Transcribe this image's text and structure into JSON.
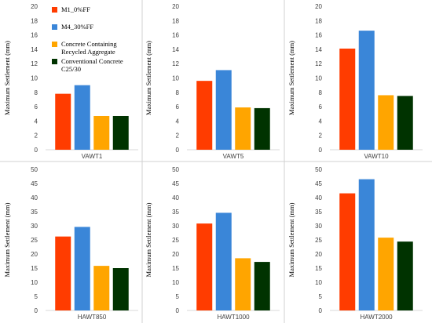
{
  "series_colors": [
    "#ff3c00",
    "#3a86d8",
    "#ffa500",
    "#003300"
  ],
  "legend": [
    {
      "label": "M1_0%FF"
    },
    {
      "label": "M4_30%FF"
    },
    {
      "label": "Concrete Containing",
      "label2": "Recycled Aggregate"
    },
    {
      "label": "Conventional Concrete",
      "label2": "C25/30"
    }
  ],
  "chart_data": [
    {
      "type": "bar",
      "categories": [
        "VAWT1"
      ],
      "ylabel": "Maximum Settlement (mm)",
      "ylim": [
        0,
        20
      ],
      "yticks": [
        0,
        2,
        4,
        6,
        8,
        10,
        12,
        14,
        16,
        18,
        20
      ],
      "series": [
        {
          "name": "M1_0%FF",
          "values": [
            7.8
          ]
        },
        {
          "name": "M4_30%FF",
          "values": [
            9.0
          ]
        },
        {
          "name": "Concrete Containing Recycled Aggregate",
          "values": [
            4.7
          ]
        },
        {
          "name": "Conventional Concrete C25/30",
          "values": [
            4.7
          ]
        }
      ]
    },
    {
      "type": "bar",
      "categories": [
        "VAWT5"
      ],
      "ylabel": "Maximum Settlement (mm)",
      "ylim": [
        0,
        20
      ],
      "yticks": [
        0,
        2,
        4,
        6,
        8,
        10,
        12,
        14,
        16,
        18,
        20
      ],
      "series": [
        {
          "name": "M1_0%FF",
          "values": [
            9.6
          ]
        },
        {
          "name": "M4_30%FF",
          "values": [
            11.1
          ]
        },
        {
          "name": "Concrete Containing Recycled Aggregate",
          "values": [
            5.9
          ]
        },
        {
          "name": "Conventional Concrete C25/30",
          "values": [
            5.8
          ]
        }
      ]
    },
    {
      "type": "bar",
      "categories": [
        "VAWT10"
      ],
      "ylabel": "Maximum Settlement (mm)",
      "ylim": [
        0,
        20
      ],
      "yticks": [
        0,
        2,
        4,
        6,
        8,
        10,
        12,
        14,
        16,
        18,
        20
      ],
      "series": [
        {
          "name": "M1_0%FF",
          "values": [
            14.1
          ]
        },
        {
          "name": "M4_30%FF",
          "values": [
            16.6
          ]
        },
        {
          "name": "Concrete Containing Recycled Aggregate",
          "values": [
            7.6
          ]
        },
        {
          "name": "Conventional Concrete C25/30",
          "values": [
            7.5
          ]
        }
      ]
    },
    {
      "type": "bar",
      "categories": [
        "HAWT850"
      ],
      "ylabel": "Maximum Settlement (mm)",
      "ylim": [
        0,
        50
      ],
      "yticks": [
        0,
        5,
        10,
        15,
        20,
        25,
        30,
        35,
        40,
        45,
        50
      ],
      "series": [
        {
          "name": "M1_0%FF",
          "values": [
            26.2
          ]
        },
        {
          "name": "M4_30%FF",
          "values": [
            29.6
          ]
        },
        {
          "name": "Concrete Containing Recycled Aggregate",
          "values": [
            15.8
          ]
        },
        {
          "name": "Conventional Concrete C25/30",
          "values": [
            15.0
          ]
        }
      ]
    },
    {
      "type": "bar",
      "categories": [
        "HAWT1000"
      ],
      "ylabel": "Maximum Settlement (mm)",
      "ylim": [
        0,
        50
      ],
      "yticks": [
        0,
        5,
        10,
        15,
        20,
        25,
        30,
        35,
        40,
        45,
        50
      ],
      "series": [
        {
          "name": "M1_0%FF",
          "values": [
            30.8
          ]
        },
        {
          "name": "M4_30%FF",
          "values": [
            34.6
          ]
        },
        {
          "name": "Concrete Containing Recycled Aggregate",
          "values": [
            18.5
          ]
        },
        {
          "name": "Conventional Concrete C25/30",
          "values": [
            17.2
          ]
        }
      ]
    },
    {
      "type": "bar",
      "categories": [
        "HAWT2000"
      ],
      "ylabel": "Maximum Settlement (mm)",
      "ylim": [
        0,
        50
      ],
      "yticks": [
        0,
        5,
        10,
        15,
        20,
        25,
        30,
        35,
        40,
        45,
        50
      ],
      "series": [
        {
          "name": "M1_0%FF",
          "values": [
            41.5
          ]
        },
        {
          "name": "M4_30%FF",
          "values": [
            46.5
          ]
        },
        {
          "name": "Concrete Containing Recycled Aggregate",
          "values": [
            25.8
          ]
        },
        {
          "name": "Conventional Concrete C25/30",
          "values": [
            24.4
          ]
        }
      ]
    }
  ]
}
